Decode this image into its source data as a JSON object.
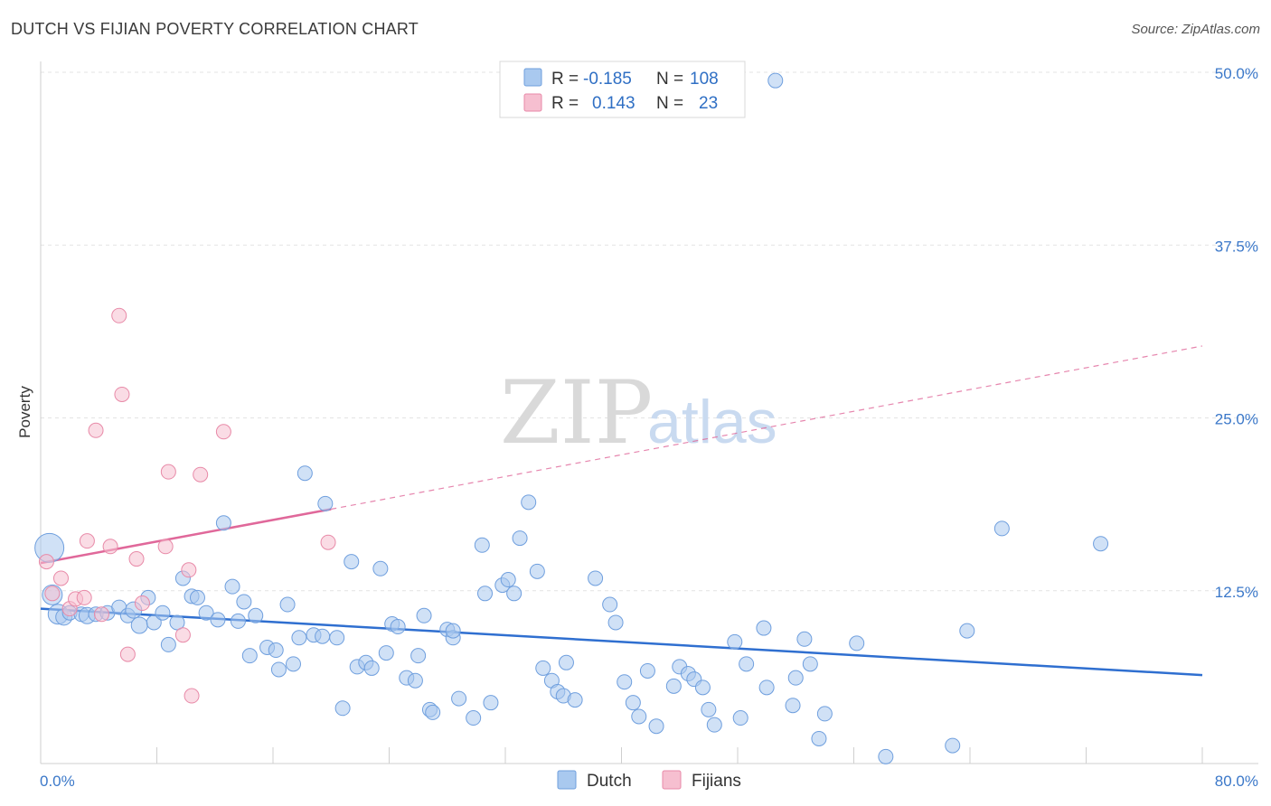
{
  "title": "DUTCH VS FIJIAN POVERTY CORRELATION CHART",
  "source": "Source: ZipAtlas.com",
  "watermark": {
    "zip": "ZIP",
    "atlas": "atlas"
  },
  "legend": {
    "rows": [
      {
        "r_label": "R =",
        "r_value": "-0.185",
        "n_label": "N =",
        "n_value": "108",
        "color": "#a9c9ef",
        "stroke": "#6f9fde"
      },
      {
        "r_label": "R =",
        "r_value": "0.143",
        "n_label": "N =",
        "n_value": "23",
        "color": "#f6bfd0",
        "stroke": "#e88aa8"
      }
    ]
  },
  "chart_data": {
    "type": "scatter",
    "title": "DUTCH VS FIJIAN POVERTY CORRELATION CHART",
    "xlabel": "",
    "ylabel": "Poverty",
    "xlim": [
      0,
      80
    ],
    "ylim": [
      0,
      50
    ],
    "x_tick_labels": [
      "0.0%",
      "80.0%"
    ],
    "y_ticks": [
      12.5,
      25.0,
      37.5,
      50.0
    ],
    "y_tick_labels": [
      "12.5%",
      "25.0%",
      "37.5%",
      "50.0%"
    ],
    "grid": true,
    "legend_position": "top-center",
    "series": [
      {
        "name": "Dutch",
        "color": "#a9c9ef",
        "stroke": "#6f9fde",
        "trend_color": "#2f6fd0",
        "trend": {
          "x0": 0,
          "y0": 11.2,
          "x1": 80,
          "y1": 6.4
        },
        "points": [
          [
            0.6,
            15.6,
            16
          ],
          [
            0.8,
            12.2,
            11
          ],
          [
            1.2,
            10.8,
            11
          ],
          [
            1.6,
            10.6,
            9
          ],
          [
            2.0,
            10.9,
            8
          ],
          [
            2.8,
            10.8,
            8
          ],
          [
            3.2,
            10.7,
            9
          ],
          [
            3.8,
            10.8,
            8
          ],
          [
            4.6,
            10.9,
            8
          ],
          [
            5.4,
            11.3,
            8
          ],
          [
            6.0,
            10.7,
            8
          ],
          [
            6.4,
            11.1,
            9
          ],
          [
            6.8,
            10.0,
            9
          ],
          [
            7.4,
            12.0,
            8
          ],
          [
            7.8,
            10.2,
            8
          ],
          [
            8.4,
            10.9,
            8
          ],
          [
            8.8,
            8.6,
            8
          ],
          [
            9.4,
            10.2,
            8
          ],
          [
            9.8,
            13.4,
            8
          ],
          [
            10.4,
            12.1,
            8
          ],
          [
            10.8,
            12.0,
            8
          ],
          [
            11.4,
            10.9,
            8
          ],
          [
            12.2,
            10.4,
            8
          ],
          [
            12.6,
            17.4,
            8
          ],
          [
            13.2,
            12.8,
            8
          ],
          [
            13.6,
            10.3,
            8
          ],
          [
            14.0,
            11.7,
            8
          ],
          [
            14.4,
            7.8,
            8
          ],
          [
            14.8,
            10.7,
            8
          ],
          [
            15.6,
            8.4,
            8
          ],
          [
            16.2,
            8.2,
            8
          ],
          [
            16.4,
            6.8,
            8
          ],
          [
            17.0,
            11.5,
            8
          ],
          [
            17.4,
            7.2,
            8
          ],
          [
            17.8,
            9.1,
            8
          ],
          [
            18.2,
            21.0,
            8
          ],
          [
            18.8,
            9.3,
            8
          ],
          [
            19.4,
            9.2,
            8
          ],
          [
            19.6,
            18.8,
            8
          ],
          [
            20.4,
            9.1,
            8
          ],
          [
            20.8,
            4.0,
            8
          ],
          [
            21.4,
            14.6,
            8
          ],
          [
            21.8,
            7.0,
            8
          ],
          [
            22.4,
            7.3,
            8
          ],
          [
            22.8,
            6.9,
            8
          ],
          [
            23.4,
            14.1,
            8
          ],
          [
            23.8,
            8.0,
            8
          ],
          [
            24.2,
            10.1,
            8
          ],
          [
            24.6,
            9.9,
            8
          ],
          [
            25.2,
            6.2,
            8
          ],
          [
            25.8,
            6.0,
            8
          ],
          [
            26.0,
            7.8,
            8
          ],
          [
            26.4,
            10.7,
            8
          ],
          [
            26.8,
            3.9,
            8
          ],
          [
            27.0,
            3.7,
            8
          ],
          [
            28.0,
            9.7,
            8
          ],
          [
            28.4,
            9.1,
            8
          ],
          [
            28.8,
            4.7,
            8
          ],
          [
            29.8,
            3.3,
            8
          ],
          [
            30.4,
            15.8,
            8
          ],
          [
            30.6,
            12.3,
            8
          ],
          [
            31.0,
            4.4,
            8
          ],
          [
            31.8,
            12.9,
            8
          ],
          [
            32.2,
            13.3,
            8
          ],
          [
            32.6,
            12.3,
            8
          ],
          [
            33.0,
            16.3,
            8
          ],
          [
            33.6,
            18.9,
            8
          ],
          [
            34.2,
            13.9,
            8
          ],
          [
            34.6,
            6.9,
            8
          ],
          [
            35.2,
            6.0,
            8
          ],
          [
            35.6,
            5.2,
            8
          ],
          [
            36.0,
            4.9,
            8
          ],
          [
            36.2,
            7.3,
            8
          ],
          [
            36.8,
            4.6,
            8
          ],
          [
            38.2,
            13.4,
            8
          ],
          [
            39.2,
            11.5,
            8
          ],
          [
            39.6,
            10.2,
            8
          ],
          [
            40.2,
            5.9,
            8
          ],
          [
            40.8,
            4.4,
            8
          ],
          [
            41.2,
            3.4,
            8
          ],
          [
            41.8,
            6.7,
            8
          ],
          [
            42.4,
            2.7,
            8
          ],
          [
            43.6,
            5.6,
            8
          ],
          [
            44.0,
            7.0,
            8
          ],
          [
            44.6,
            6.5,
            8
          ],
          [
            45.0,
            6.1,
            8
          ],
          [
            45.6,
            5.5,
            8
          ],
          [
            46.0,
            3.9,
            8
          ],
          [
            46.4,
            2.8,
            8
          ],
          [
            47.8,
            8.8,
            8
          ],
          [
            48.2,
            3.3,
            8
          ],
          [
            48.6,
            7.2,
            8
          ],
          [
            49.8,
            9.8,
            8
          ],
          [
            50.0,
            5.5,
            8
          ],
          [
            50.6,
            49.4,
            8
          ],
          [
            51.8,
            4.2,
            8
          ],
          [
            52.0,
            6.2,
            8
          ],
          [
            52.6,
            9.0,
            8
          ],
          [
            53.0,
            7.2,
            8
          ],
          [
            53.6,
            1.8,
            8
          ],
          [
            54.0,
            3.6,
            8
          ],
          [
            56.2,
            8.7,
            8
          ],
          [
            58.2,
            0.5,
            8
          ],
          [
            62.8,
            1.3,
            8
          ],
          [
            63.8,
            9.6,
            8
          ],
          [
            66.2,
            17.0,
            8
          ],
          [
            73.0,
            15.9,
            8
          ],
          [
            28.4,
            9.6,
            8
          ]
        ]
      },
      {
        "name": "Fijians",
        "color": "#f6bfd0",
        "stroke": "#e88aa8",
        "trend_color": "#e0689a",
        "trend": {
          "x0": 0,
          "y0": 14.5,
          "x1": 20,
          "y1": 18.4,
          "x_dash_end": 80,
          "y_dash_end": 30.2
        },
        "points": [
          [
            0.4,
            14.6,
            8
          ],
          [
            0.8,
            12.3,
            8
          ],
          [
            1.4,
            13.4,
            8
          ],
          [
            2.0,
            11.2,
            8
          ],
          [
            2.4,
            11.9,
            8
          ],
          [
            3.0,
            12.0,
            8
          ],
          [
            3.2,
            16.1,
            8
          ],
          [
            4.2,
            10.8,
            8
          ],
          [
            4.8,
            15.7,
            8
          ],
          [
            5.4,
            32.4,
            8
          ],
          [
            5.6,
            26.7,
            8
          ],
          [
            6.0,
            7.9,
            8
          ],
          [
            6.6,
            14.8,
            8
          ],
          [
            8.6,
            15.7,
            8
          ],
          [
            8.8,
            21.1,
            8
          ],
          [
            9.8,
            9.3,
            8
          ],
          [
            10.2,
            14.0,
            8
          ],
          [
            10.4,
            4.9,
            8
          ],
          [
            11.0,
            20.9,
            8
          ],
          [
            12.6,
            24.0,
            8
          ],
          [
            3.8,
            24.1,
            8
          ],
          [
            19.8,
            16.0,
            8
          ],
          [
            7.0,
            11.6,
            8
          ]
        ]
      }
    ]
  },
  "bottom_legend": [
    "Dutch",
    "Fijians"
  ]
}
